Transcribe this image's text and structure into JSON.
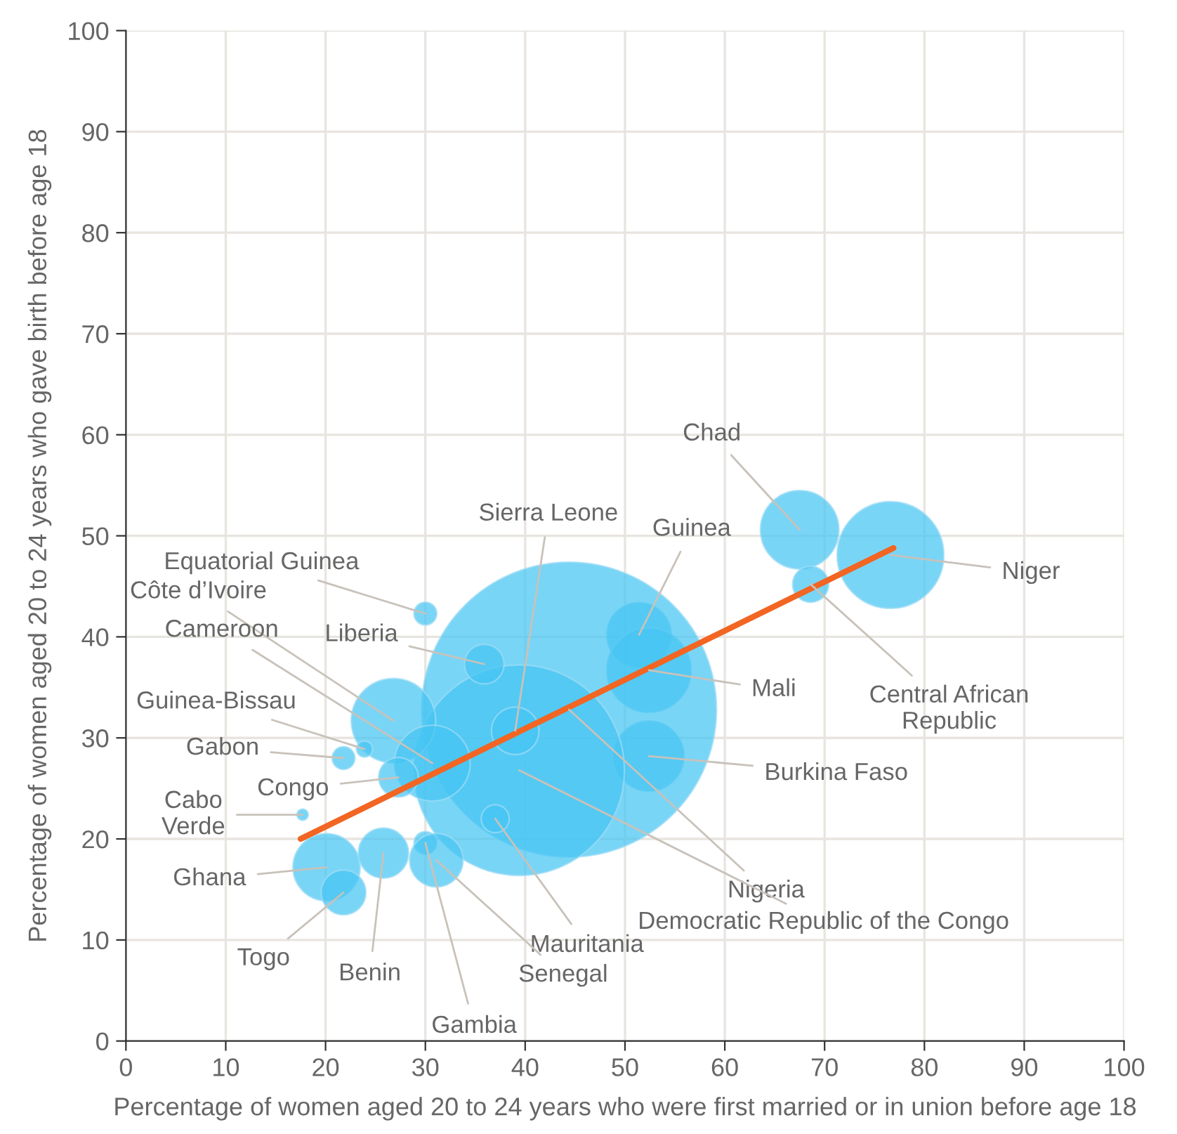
{
  "chart_data": {
    "type": "bubble",
    "xlabel": "Percentage of women aged 20 to 24 years who were first married or in union before age 18",
    "ylabel": "Percentage of women aged 20 to 24 years who gave birth before age 18",
    "xlim": [
      0,
      100
    ],
    "ylim": [
      0,
      100
    ],
    "xticks": [
      0,
      10,
      20,
      30,
      40,
      50,
      60,
      70,
      80,
      90,
      100
    ],
    "yticks": [
      0,
      10,
      20,
      30,
      40,
      50,
      60,
      70,
      80,
      90,
      100
    ],
    "grid": true,
    "series": [
      {
        "color": "#45c5f3",
        "x": [
          67.5,
          76.6,
          68.6,
          51.4,
          52.4,
          52.4,
          44.4,
          39.4,
          39.0,
          37.0,
          35.9,
          30.0,
          26.8,
          30.7,
          23.9,
          21.8,
          27.3,
          17.7,
          20.1,
          21.8,
          25.8,
          30.0,
          31.1
        ],
        "values": [
          50.6,
          48.1,
          45.2,
          40.2,
          36.7,
          28.2,
          32.8,
          26.8,
          30.7,
          22.0,
          37.3,
          42.3,
          31.7,
          27.5,
          28.9,
          28.0,
          26.1,
          22.4,
          17.2,
          14.7,
          18.6,
          19.6,
          17.9
        ],
        "sizes": [
          0.071,
          0.131,
          0.015,
          0.048,
          0.082,
          0.057,
          1,
          0.51,
          0.026,
          0.009,
          0.018,
          0.006,
          0.082,
          0.066,
          0.003,
          0.006,
          0.018,
          0.0015,
          0.052,
          0.023,
          0.029,
          0.006,
          0.033
        ]
      },
      {
        "type": "line",
        "color": "#f26522",
        "x": [
          17.5,
          76.9
        ],
        "values": [
          20.0,
          48.8
        ]
      }
    ],
    "annotations": [
      {
        "text": "Chad",
        "x": 67.5,
        "y": 50.6
      },
      {
        "text": "Niger",
        "x": 76.6,
        "y": 48.1
      },
      {
        "text": "Central African\nRepublic",
        "x": 68.6,
        "y": 45.2
      },
      {
        "text": "Guinea",
        "x": 51.4,
        "y": 40.2
      },
      {
        "text": "Mali",
        "x": 52.4,
        "y": 36.7
      },
      {
        "text": "Burkina Faso",
        "x": 52.4,
        "y": 28.2
      },
      {
        "text": "Nigeria",
        "x": 44.4,
        "y": 32.8
      },
      {
        "text": "Democratic Republic of the Congo",
        "x": 39.4,
        "y": 26.8
      },
      {
        "text": "Sierra Leone",
        "x": 39.0,
        "y": 30.7
      },
      {
        "text": "Mauritania",
        "x": 37.0,
        "y": 22.0
      },
      {
        "text": "Liberia",
        "x": 35.9,
        "y": 37.3
      },
      {
        "text": "Equatorial Guinea",
        "x": 30.0,
        "y": 42.3
      },
      {
        "text": "Côte d’Ivoire",
        "x": 26.8,
        "y": 31.7
      },
      {
        "text": "Cameroon",
        "x": 30.7,
        "y": 27.5
      },
      {
        "text": "Guinea-Bissau",
        "x": 23.9,
        "y": 28.9
      },
      {
        "text": "Gabon",
        "x": 21.8,
        "y": 28.0
      },
      {
        "text": "Congo",
        "x": 27.3,
        "y": 26.1
      },
      {
        "text": "Cabo\nVerde",
        "x": 17.7,
        "y": 22.4
      },
      {
        "text": "Ghana",
        "x": 20.1,
        "y": 17.2
      },
      {
        "text": "Togo",
        "x": 21.8,
        "y": 14.7
      },
      {
        "text": "Benin",
        "x": 25.8,
        "y": 18.6
      },
      {
        "text": "Gambia",
        "x": 30.0,
        "y": 19.6
      },
      {
        "text": "Senegal",
        "x": 31.1,
        "y": 17.9
      }
    ]
  }
}
